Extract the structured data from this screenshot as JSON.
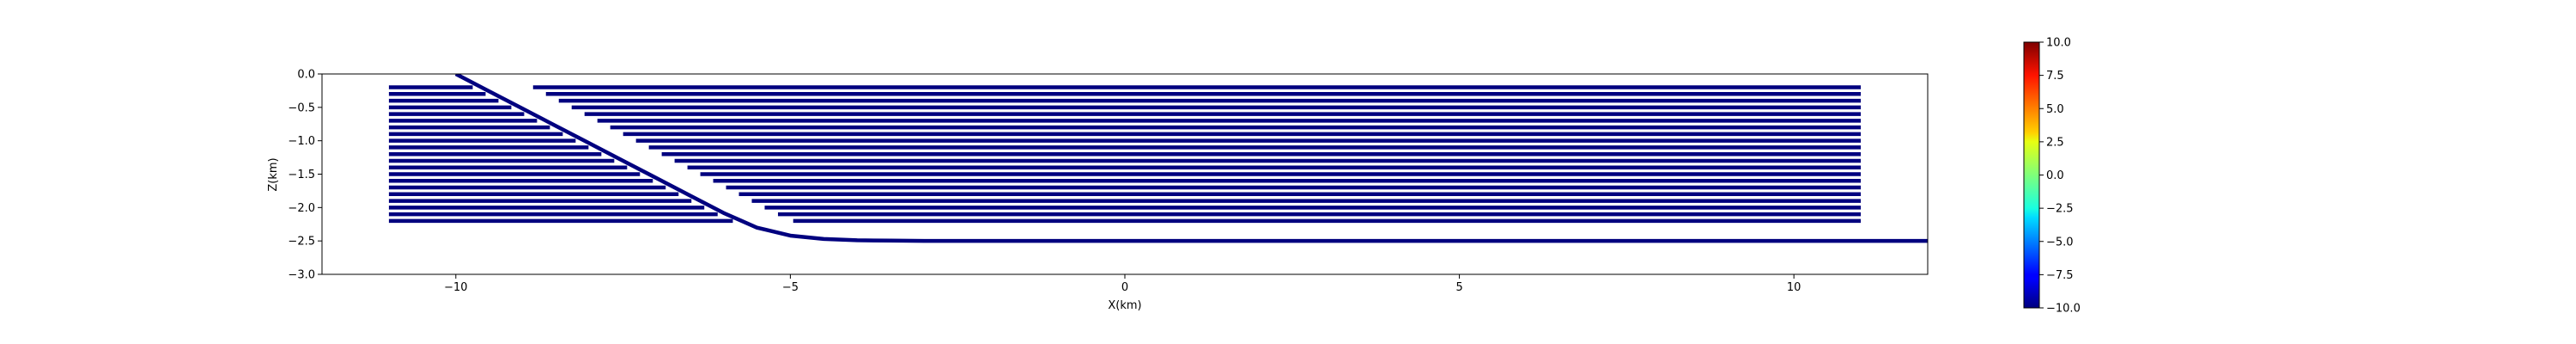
{
  "chart_data": {
    "type": "line",
    "title": "",
    "xlabel": "X(km)",
    "ylabel": "Z(km)",
    "xlim": [
      -12,
      12
    ],
    "ylim": [
      -3,
      0
    ],
    "xticks": [
      -10,
      -5,
      0,
      5,
      10
    ],
    "xtick_labels": [
      "−10",
      "−5",
      "0",
      "5",
      "10"
    ],
    "yticks": [
      0,
      -0.5,
      -1,
      -1.5,
      -2,
      -2.5,
      -3
    ],
    "ytick_labels": [
      "0.0",
      "−0.5",
      "−1.0",
      "−1.5",
      "−2.0",
      "−2.5",
      "−3.0"
    ],
    "line_color": "#00007f",
    "layers": {
      "x_range": [
        -11,
        11
      ],
      "z_top": -0.2,
      "z_bottom": -2.2,
      "count": 21
    },
    "fault": {
      "name": "fault",
      "x": [
        -10,
        -9.5,
        -9,
        -8.5,
        -8,
        -7.5,
        -7,
        -6.5,
        -6,
        -5.5,
        -5,
        -4.5,
        -4,
        -3.5,
        -3,
        -2,
        -1,
        0,
        2,
        5,
        8,
        12
      ],
      "z": [
        0,
        -0.26,
        -0.52,
        -0.78,
        -1.04,
        -1.3,
        -1.56,
        -1.82,
        -2.08,
        -2.3,
        -2.42,
        -2.47,
        -2.49,
        -2.495,
        -2.5,
        -2.5,
        -2.5,
        -2.5,
        -2.5,
        -2.5,
        -2.5,
        -2.5
      ]
    },
    "colorbar": {
      "cmap": "jet",
      "range": [
        -10,
        10
      ],
      "ticks": [
        10,
        7.5,
        5,
        2.5,
        0,
        -2.5,
        -5,
        -7.5,
        -10
      ],
      "tick_labels": [
        "10.0",
        "7.5",
        "5.0",
        "2.5",
        "0.0",
        "−2.5",
        "−5.0",
        "−7.5",
        "−10.0"
      ]
    },
    "grid": false,
    "legend": "none"
  }
}
